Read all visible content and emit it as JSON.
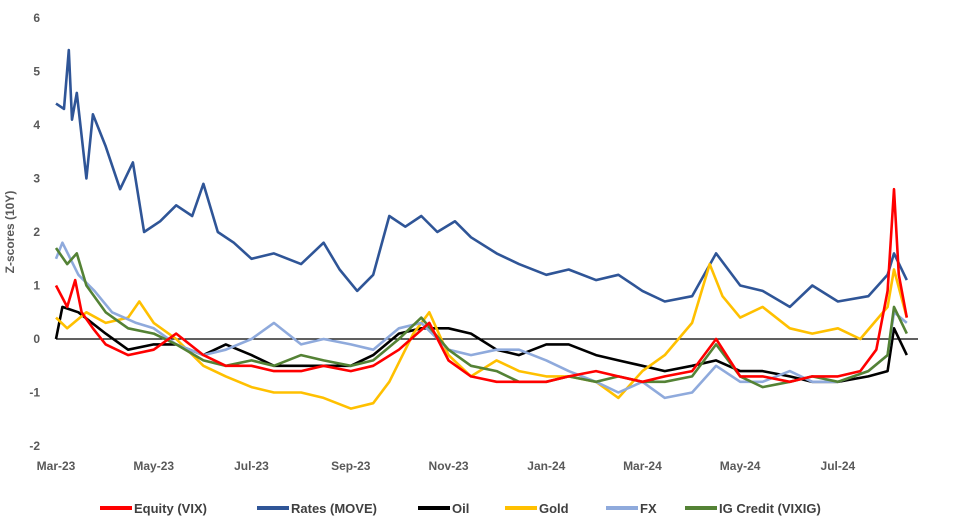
{
  "chart_data": {
    "type": "line",
    "title": "",
    "xlabel": "",
    "ylabel": "Z-scores (10Y)",
    "ylim": [
      -2,
      6
    ],
    "yticks": [
      6,
      5,
      4,
      3,
      2,
      1,
      0,
      -1,
      -2
    ],
    "xticks": [
      {
        "label": "Mar-23",
        "date": "2023-03-01"
      },
      {
        "label": "May-23",
        "date": "2023-05-01"
      },
      {
        "label": "Jul-23",
        "date": "2023-07-01"
      },
      {
        "label": "Sep-23",
        "date": "2023-09-01"
      },
      {
        "label": "Nov-23",
        "date": "2023-11-01"
      },
      {
        "label": "Jan-24",
        "date": "2024-01-01"
      },
      {
        "label": "Mar-24",
        "date": "2024-03-01"
      },
      {
        "label": "May-24",
        "date": "2024-05-01"
      },
      {
        "label": "Jul-24",
        "date": "2024-07-01"
      }
    ],
    "xlim": [
      "2023-03-01",
      "2024-08-20"
    ],
    "legend_position": "bottom",
    "zero_line": true,
    "series": [
      {
        "name": "Equity (VIX)",
        "color": "#FF0000",
        "points": [
          [
            "2023-03-01",
            1.0
          ],
          [
            "2023-03-08",
            0.6
          ],
          [
            "2023-03-13",
            1.1
          ],
          [
            "2023-03-17",
            0.5
          ],
          [
            "2023-03-24",
            0.2
          ],
          [
            "2023-04-01",
            -0.1
          ],
          [
            "2023-04-15",
            -0.3
          ],
          [
            "2023-05-01",
            -0.2
          ],
          [
            "2023-05-15",
            0.1
          ],
          [
            "2023-06-01",
            -0.3
          ],
          [
            "2023-06-15",
            -0.5
          ],
          [
            "2023-07-01",
            -0.5
          ],
          [
            "2023-07-15",
            -0.6
          ],
          [
            "2023-08-01",
            -0.6
          ],
          [
            "2023-08-15",
            -0.5
          ],
          [
            "2023-09-01",
            -0.6
          ],
          [
            "2023-09-15",
            -0.5
          ],
          [
            "2023-10-01",
            -0.2
          ],
          [
            "2023-10-20",
            0.3
          ],
          [
            "2023-11-01",
            -0.4
          ],
          [
            "2023-11-15",
            -0.7
          ],
          [
            "2023-12-01",
            -0.8
          ],
          [
            "2023-12-15",
            -0.8
          ],
          [
            "2024-01-01",
            -0.8
          ],
          [
            "2024-01-15",
            -0.7
          ],
          [
            "2024-02-01",
            -0.6
          ],
          [
            "2024-02-15",
            -0.7
          ],
          [
            "2024-03-01",
            -0.8
          ],
          [
            "2024-03-15",
            -0.7
          ],
          [
            "2024-04-01",
            -0.6
          ],
          [
            "2024-04-16",
            0.0
          ],
          [
            "2024-05-01",
            -0.7
          ],
          [
            "2024-05-15",
            -0.7
          ],
          [
            "2024-06-01",
            -0.8
          ],
          [
            "2024-06-15",
            -0.7
          ],
          [
            "2024-07-01",
            -0.7
          ],
          [
            "2024-07-15",
            -0.6
          ],
          [
            "2024-07-25",
            -0.2
          ],
          [
            "2024-08-01",
            0.9
          ],
          [
            "2024-08-05",
            2.8
          ],
          [
            "2024-08-08",
            1.2
          ],
          [
            "2024-08-13",
            0.4
          ]
        ]
      },
      {
        "name": "Rates (MOVE)",
        "color": "#2F5597",
        "points": [
          [
            "2023-03-01",
            4.4
          ],
          [
            "2023-03-06",
            4.3
          ],
          [
            "2023-03-09",
            5.4
          ],
          [
            "2023-03-11",
            4.1
          ],
          [
            "2023-03-14",
            4.6
          ],
          [
            "2023-03-20",
            3.0
          ],
          [
            "2023-03-24",
            4.2
          ],
          [
            "2023-04-01",
            3.6
          ],
          [
            "2023-04-10",
            2.8
          ],
          [
            "2023-04-18",
            3.3
          ],
          [
            "2023-04-25",
            2.0
          ],
          [
            "2023-05-05",
            2.2
          ],
          [
            "2023-05-15",
            2.5
          ],
          [
            "2023-05-25",
            2.3
          ],
          [
            "2023-06-01",
            2.9
          ],
          [
            "2023-06-10",
            2.0
          ],
          [
            "2023-06-20",
            1.8
          ],
          [
            "2023-07-01",
            1.5
          ],
          [
            "2023-07-15",
            1.6
          ],
          [
            "2023-08-01",
            1.4
          ],
          [
            "2023-08-15",
            1.8
          ],
          [
            "2023-08-25",
            1.3
          ],
          [
            "2023-09-05",
            0.9
          ],
          [
            "2023-09-15",
            1.2
          ],
          [
            "2023-09-25",
            2.3
          ],
          [
            "2023-10-05",
            2.1
          ],
          [
            "2023-10-15",
            2.3
          ],
          [
            "2023-10-25",
            2.0
          ],
          [
            "2023-11-05",
            2.2
          ],
          [
            "2023-11-15",
            1.9
          ],
          [
            "2023-12-01",
            1.6
          ],
          [
            "2023-12-15",
            1.4
          ],
          [
            "2024-01-01",
            1.2
          ],
          [
            "2024-01-15",
            1.3
          ],
          [
            "2024-02-01",
            1.1
          ],
          [
            "2024-02-15",
            1.2
          ],
          [
            "2024-03-01",
            0.9
          ],
          [
            "2024-03-15",
            0.7
          ],
          [
            "2024-04-01",
            0.8
          ],
          [
            "2024-04-16",
            1.6
          ],
          [
            "2024-05-01",
            1.0
          ],
          [
            "2024-05-15",
            0.9
          ],
          [
            "2024-06-01",
            0.6
          ],
          [
            "2024-06-15",
            1.0
          ],
          [
            "2024-07-01",
            0.7
          ],
          [
            "2024-07-20",
            0.8
          ],
          [
            "2024-08-01",
            1.2
          ],
          [
            "2024-08-05",
            1.6
          ],
          [
            "2024-08-13",
            1.1
          ]
        ]
      },
      {
        "name": "Oil",
        "color": "#000000",
        "points": [
          [
            "2023-03-01",
            0.0
          ],
          [
            "2023-03-05",
            0.6
          ],
          [
            "2023-03-15",
            0.5
          ],
          [
            "2023-04-01",
            0.1
          ],
          [
            "2023-04-15",
            -0.2
          ],
          [
            "2023-05-01",
            -0.1
          ],
          [
            "2023-05-15",
            -0.1
          ],
          [
            "2023-06-01",
            -0.3
          ],
          [
            "2023-06-15",
            -0.1
          ],
          [
            "2023-07-01",
            -0.3
          ],
          [
            "2023-07-15",
            -0.5
          ],
          [
            "2023-08-01",
            -0.5
          ],
          [
            "2023-08-15",
            -0.5
          ],
          [
            "2023-09-01",
            -0.5
          ],
          [
            "2023-09-15",
            -0.3
          ],
          [
            "2023-10-01",
            0.1
          ],
          [
            "2023-10-15",
            0.2
          ],
          [
            "2023-11-01",
            0.2
          ],
          [
            "2023-11-15",
            0.1
          ],
          [
            "2023-12-01",
            -0.2
          ],
          [
            "2023-12-15",
            -0.3
          ],
          [
            "2024-01-01",
            -0.1
          ],
          [
            "2024-01-15",
            -0.1
          ],
          [
            "2024-02-01",
            -0.3
          ],
          [
            "2024-02-15",
            -0.4
          ],
          [
            "2024-03-01",
            -0.5
          ],
          [
            "2024-03-15",
            -0.6
          ],
          [
            "2024-04-01",
            -0.5
          ],
          [
            "2024-04-16",
            -0.4
          ],
          [
            "2024-05-01",
            -0.6
          ],
          [
            "2024-05-15",
            -0.6
          ],
          [
            "2024-06-01",
            -0.7
          ],
          [
            "2024-06-15",
            -0.8
          ],
          [
            "2024-07-01",
            -0.8
          ],
          [
            "2024-07-20",
            -0.7
          ],
          [
            "2024-08-01",
            -0.6
          ],
          [
            "2024-08-05",
            0.2
          ],
          [
            "2024-08-13",
            -0.3
          ]
        ]
      },
      {
        "name": "Gold",
        "color": "#FFC000",
        "points": [
          [
            "2023-03-01",
            0.4
          ],
          [
            "2023-03-08",
            0.2
          ],
          [
            "2023-03-20",
            0.5
          ],
          [
            "2023-04-01",
            0.3
          ],
          [
            "2023-04-15",
            0.4
          ],
          [
            "2023-04-22",
            0.7
          ],
          [
            "2023-05-01",
            0.3
          ],
          [
            "2023-05-15",
            0.0
          ],
          [
            "2023-06-01",
            -0.5
          ],
          [
            "2023-06-15",
            -0.7
          ],
          [
            "2023-07-01",
            -0.9
          ],
          [
            "2023-07-15",
            -1.0
          ],
          [
            "2023-08-01",
            -1.0
          ],
          [
            "2023-08-15",
            -1.1
          ],
          [
            "2023-09-01",
            -1.3
          ],
          [
            "2023-09-15",
            -1.2
          ],
          [
            "2023-09-25",
            -0.8
          ],
          [
            "2023-10-10",
            0.1
          ],
          [
            "2023-10-20",
            0.5
          ],
          [
            "2023-11-01",
            -0.3
          ],
          [
            "2023-11-15",
            -0.7
          ],
          [
            "2023-12-01",
            -0.4
          ],
          [
            "2023-12-15",
            -0.6
          ],
          [
            "2024-01-01",
            -0.7
          ],
          [
            "2024-01-15",
            -0.7
          ],
          [
            "2024-02-01",
            -0.8
          ],
          [
            "2024-02-15",
            -1.1
          ],
          [
            "2024-03-01",
            -0.6
          ],
          [
            "2024-03-15",
            -0.3
          ],
          [
            "2024-04-01",
            0.3
          ],
          [
            "2024-04-12",
            1.4
          ],
          [
            "2024-04-20",
            0.8
          ],
          [
            "2024-05-01",
            0.4
          ],
          [
            "2024-05-15",
            0.6
          ],
          [
            "2024-06-01",
            0.2
          ],
          [
            "2024-06-15",
            0.1
          ],
          [
            "2024-07-01",
            0.2
          ],
          [
            "2024-07-15",
            0.0
          ],
          [
            "2024-08-01",
            0.6
          ],
          [
            "2024-08-05",
            1.3
          ],
          [
            "2024-08-13",
            0.4
          ]
        ]
      },
      {
        "name": "FX",
        "color": "#8FAADC",
        "points": [
          [
            "2023-03-01",
            1.5
          ],
          [
            "2023-03-05",
            1.8
          ],
          [
            "2023-03-15",
            1.2
          ],
          [
            "2023-03-25",
            0.9
          ],
          [
            "2023-04-05",
            0.5
          ],
          [
            "2023-04-20",
            0.3
          ],
          [
            "2023-05-01",
            0.2
          ],
          [
            "2023-05-15",
            -0.1
          ],
          [
            "2023-06-01",
            -0.3
          ],
          [
            "2023-06-15",
            -0.2
          ],
          [
            "2023-07-01",
            0.0
          ],
          [
            "2023-07-15",
            0.3
          ],
          [
            "2023-08-01",
            -0.1
          ],
          [
            "2023-08-15",
            0.0
          ],
          [
            "2023-09-01",
            -0.1
          ],
          [
            "2023-09-15",
            -0.2
          ],
          [
            "2023-10-01",
            0.2
          ],
          [
            "2023-10-15",
            0.3
          ],
          [
            "2023-11-01",
            -0.2
          ],
          [
            "2023-11-15",
            -0.3
          ],
          [
            "2023-12-01",
            -0.2
          ],
          [
            "2023-12-15",
            -0.2
          ],
          [
            "2024-01-01",
            -0.4
          ],
          [
            "2024-01-15",
            -0.6
          ],
          [
            "2024-02-01",
            -0.8
          ],
          [
            "2024-02-15",
            -1.0
          ],
          [
            "2024-03-01",
            -0.8
          ],
          [
            "2024-03-15",
            -1.1
          ],
          [
            "2024-04-01",
            -1.0
          ],
          [
            "2024-04-16",
            -0.5
          ],
          [
            "2024-05-01",
            -0.8
          ],
          [
            "2024-05-15",
            -0.8
          ],
          [
            "2024-06-01",
            -0.6
          ],
          [
            "2024-06-15",
            -0.8
          ],
          [
            "2024-07-01",
            -0.8
          ],
          [
            "2024-07-20",
            -0.6
          ],
          [
            "2024-08-01",
            -0.3
          ],
          [
            "2024-08-05",
            0.5
          ],
          [
            "2024-08-13",
            0.3
          ]
        ]
      },
      {
        "name": "IG Credit (VIXIG)",
        "color": "#548235",
        "points": [
          [
            "2023-03-01",
            1.7
          ],
          [
            "2023-03-08",
            1.4
          ],
          [
            "2023-03-14",
            1.6
          ],
          [
            "2023-03-20",
            1.0
          ],
          [
            "2023-04-01",
            0.5
          ],
          [
            "2023-04-15",
            0.2
          ],
          [
            "2023-05-01",
            0.1
          ],
          [
            "2023-05-15",
            -0.1
          ],
          [
            "2023-06-01",
            -0.4
          ],
          [
            "2023-06-15",
            -0.5
          ],
          [
            "2023-07-01",
            -0.4
          ],
          [
            "2023-07-15",
            -0.5
          ],
          [
            "2023-08-01",
            -0.3
          ],
          [
            "2023-08-15",
            -0.4
          ],
          [
            "2023-09-01",
            -0.5
          ],
          [
            "2023-09-15",
            -0.4
          ],
          [
            "2023-10-01",
            0.0
          ],
          [
            "2023-10-15",
            0.4
          ],
          [
            "2023-11-01",
            -0.2
          ],
          [
            "2023-11-15",
            -0.5
          ],
          [
            "2023-12-01",
            -0.6
          ],
          [
            "2023-12-15",
            -0.8
          ],
          [
            "2024-01-01",
            -0.8
          ],
          [
            "2024-01-15",
            -0.7
          ],
          [
            "2024-02-01",
            -0.8
          ],
          [
            "2024-02-15",
            -0.7
          ],
          [
            "2024-03-01",
            -0.8
          ],
          [
            "2024-03-15",
            -0.8
          ],
          [
            "2024-04-01",
            -0.7
          ],
          [
            "2024-04-16",
            -0.1
          ],
          [
            "2024-05-01",
            -0.7
          ],
          [
            "2024-05-15",
            -0.9
          ],
          [
            "2024-06-01",
            -0.8
          ],
          [
            "2024-06-15",
            -0.7
          ],
          [
            "2024-07-01",
            -0.8
          ],
          [
            "2024-07-20",
            -0.6
          ],
          [
            "2024-08-01",
            -0.3
          ],
          [
            "2024-08-05",
            0.6
          ],
          [
            "2024-08-13",
            0.1
          ]
        ]
      }
    ]
  }
}
